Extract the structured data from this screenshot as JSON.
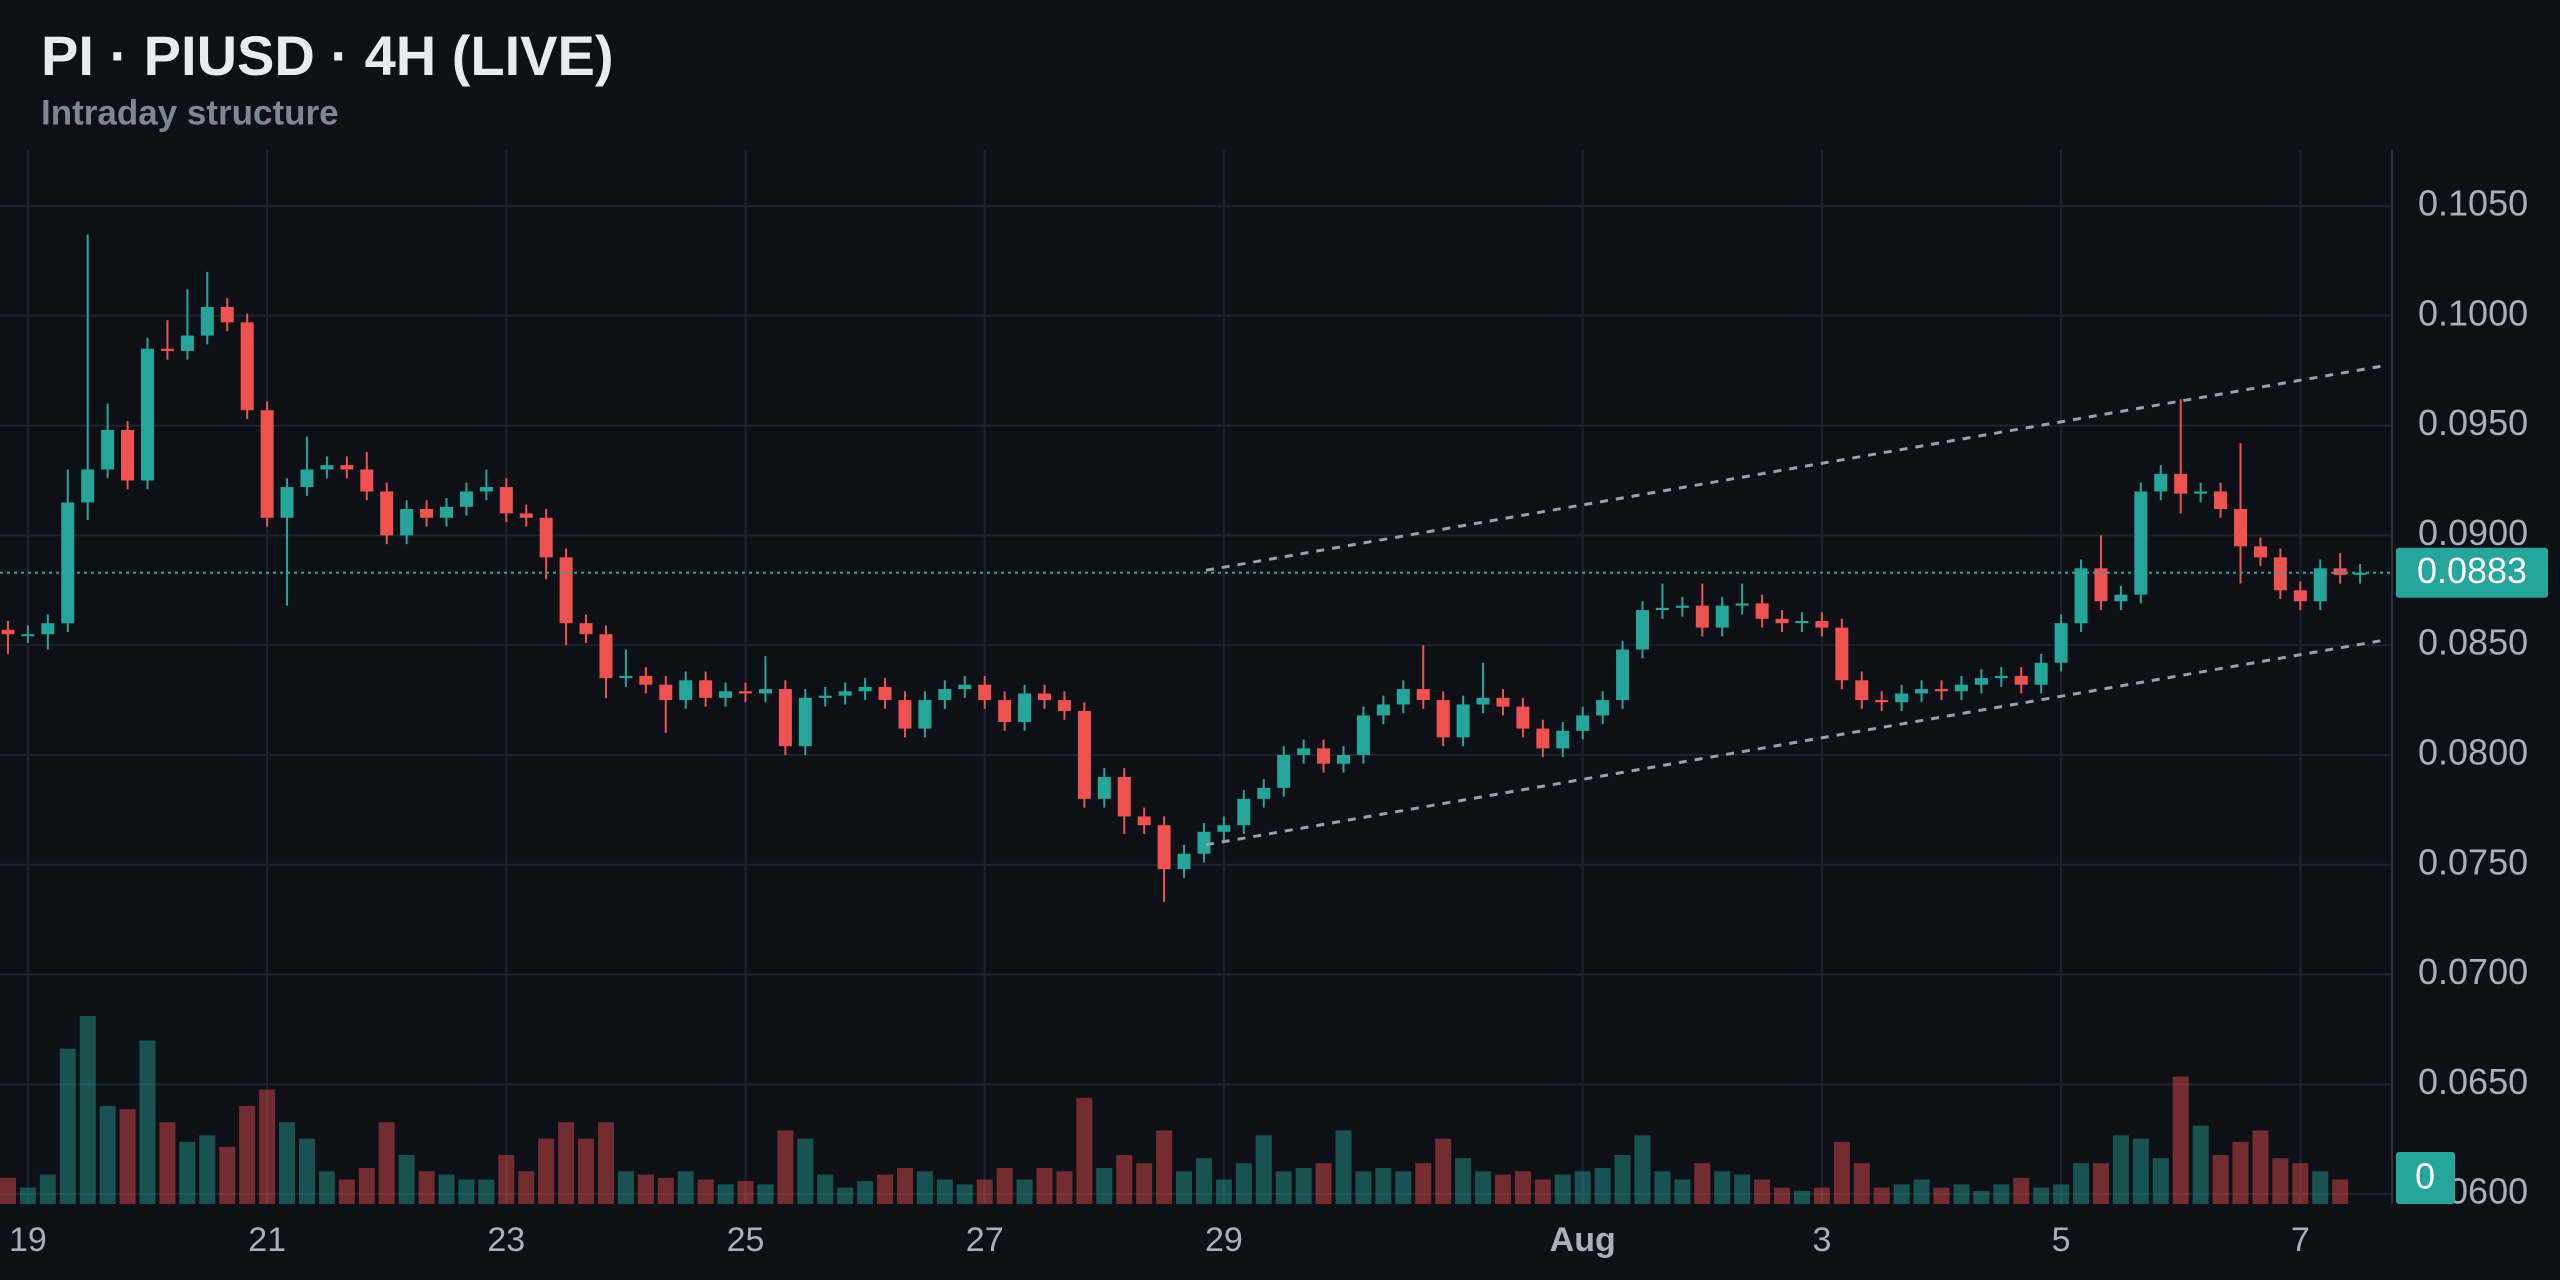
{
  "chart_data": {
    "type": "candlestick",
    "title": "PI · PIUSD · 4H (LIVE)",
    "subtitle": "Intraday structure",
    "up_color": "#26a69a",
    "down_color": "#ef5350",
    "grid": true,
    "xlim": [
      -0.4,
      119.6
    ],
    "ylim": [
      0.05955,
      0.10755
    ],
    "xticks": [
      {
        "value": 1,
        "label": "19"
      },
      {
        "value": 13,
        "label": "21"
      },
      {
        "value": 25,
        "label": "23"
      },
      {
        "value": 37,
        "label": "25"
      },
      {
        "value": 49,
        "label": "27"
      },
      {
        "value": 61,
        "label": "29"
      },
      {
        "value": 79,
        "label": "Aug"
      },
      {
        "value": 91,
        "label": "3"
      },
      {
        "value": 103,
        "label": "5"
      },
      {
        "value": 115,
        "label": "7"
      }
    ],
    "yticks": [
      {
        "value": 0.06,
        "label": "0.0600"
      },
      {
        "value": 0.065,
        "label": "0.0650"
      },
      {
        "value": 0.07,
        "label": "0.0700"
      },
      {
        "value": 0.075,
        "label": "0.0750"
      },
      {
        "value": 0.08,
        "label": "0.0800"
      },
      {
        "value": 0.085,
        "label": "0.0850"
      },
      {
        "value": 0.09,
        "label": "0.0900"
      },
      {
        "value": 0.095,
        "label": "0.0950"
      },
      {
        "value": 0.1,
        "label": "0.1000"
      },
      {
        "value": 0.105,
        "label": "0.1050"
      }
    ],
    "open": [
      0.0857,
      0.0855,
      0.0855,
      0.086,
      0.0915,
      0.093,
      0.0948,
      0.0925,
      0.0985,
      0.0984,
      0.0991,
      0.1004,
      0.0997,
      0.0957,
      0.0908,
      0.0922,
      0.093,
      0.0932,
      0.093,
      0.092,
      0.09,
      0.0912,
      0.0908,
      0.0913,
      0.092,
      0.0922,
      0.091,
      0.0908,
      0.089,
      0.086,
      0.0855,
      0.0835,
      0.0836,
      0.0832,
      0.0825,
      0.0834,
      0.0826,
      0.0829,
      0.0828,
      0.083,
      0.0804,
      0.0826,
      0.0827,
      0.0829,
      0.0831,
      0.0825,
      0.0812,
      0.0825,
      0.083,
      0.0832,
      0.0825,
      0.0815,
      0.0828,
      0.0825,
      0.082,
      0.078,
      0.079,
      0.0772,
      0.0768,
      0.0748,
      0.0755,
      0.0765,
      0.0768,
      0.078,
      0.0785,
      0.08,
      0.0803,
      0.0796,
      0.08,
      0.0818,
      0.0823,
      0.083,
      0.0825,
      0.0808,
      0.0823,
      0.0826,
      0.0822,
      0.0812,
      0.0803,
      0.0811,
      0.0818,
      0.0825,
      0.0848,
      0.0866,
      0.0867,
      0.0868,
      0.0858,
      0.0868,
      0.0869,
      0.0862,
      0.086,
      0.0861,
      0.0858,
      0.0834,
      0.0825,
      0.0824,
      0.0828,
      0.083,
      0.0829,
      0.0832,
      0.0835,
      0.0836,
      0.0832,
      0.0842,
      0.086,
      0.0885,
      0.087,
      0.0873,
      0.092,
      0.0928,
      0.0919,
      0.092,
      0.0912,
      0.0895,
      0.089,
      0.0875,
      0.087,
      0.0885,
      0.0882
    ],
    "high": [
      0.0861,
      0.0859,
      0.0864,
      0.093,
      0.1037,
      0.096,
      0.0952,
      0.099,
      0.0998,
      0.1012,
      0.102,
      0.1008,
      0.1001,
      0.0961,
      0.0926,
      0.0945,
      0.0936,
      0.0936,
      0.0938,
      0.0924,
      0.0916,
      0.0916,
      0.0917,
      0.0924,
      0.093,
      0.0926,
      0.0914,
      0.0912,
      0.0894,
      0.0864,
      0.0859,
      0.0848,
      0.084,
      0.0836,
      0.0838,
      0.0838,
      0.0833,
      0.0833,
      0.0845,
      0.0834,
      0.083,
      0.0831,
      0.0833,
      0.0835,
      0.0835,
      0.0829,
      0.0829,
      0.0834,
      0.0836,
      0.0836,
      0.0829,
      0.0832,
      0.0832,
      0.0829,
      0.0824,
      0.0794,
      0.0794,
      0.0776,
      0.0772,
      0.0759,
      0.0769,
      0.0772,
      0.0784,
      0.0789,
      0.0804,
      0.0807,
      0.0807,
      0.0804,
      0.0822,
      0.0827,
      0.0834,
      0.085,
      0.0829,
      0.0827,
      0.0842,
      0.083,
      0.0826,
      0.0816,
      0.0815,
      0.0822,
      0.0829,
      0.0852,
      0.087,
      0.0878,
      0.0872,
      0.0878,
      0.0872,
      0.0878,
      0.0873,
      0.0866,
      0.0865,
      0.0865,
      0.0862,
      0.0838,
      0.0829,
      0.0832,
      0.0834,
      0.0834,
      0.0836,
      0.0839,
      0.084,
      0.084,
      0.0846,
      0.0864,
      0.0889,
      0.09,
      0.0877,
      0.0924,
      0.0932,
      0.0962,
      0.0924,
      0.0924,
      0.0942,
      0.0899,
      0.0894,
      0.0879,
      0.0889,
      0.0892,
      0.0887
    ],
    "low": [
      0.0846,
      0.0851,
      0.0848,
      0.0856,
      0.0907,
      0.0926,
      0.0921,
      0.0921,
      0.098,
      0.098,
      0.0987,
      0.0993,
      0.0953,
      0.0904,
      0.0868,
      0.0918,
      0.0926,
      0.0926,
      0.0916,
      0.0896,
      0.0896,
      0.0904,
      0.0904,
      0.0909,
      0.0916,
      0.0906,
      0.0904,
      0.088,
      0.085,
      0.0851,
      0.0826,
      0.0831,
      0.0828,
      0.081,
      0.0821,
      0.0822,
      0.0822,
      0.0824,
      0.0824,
      0.08,
      0.08,
      0.0822,
      0.0823,
      0.0825,
      0.0821,
      0.0808,
      0.0808,
      0.0821,
      0.0826,
      0.0821,
      0.0811,
      0.0811,
      0.0821,
      0.0816,
      0.0776,
      0.0776,
      0.0764,
      0.0764,
      0.0733,
      0.0744,
      0.0751,
      0.0761,
      0.0764,
      0.0776,
      0.0781,
      0.0796,
      0.0792,
      0.0792,
      0.0796,
      0.0814,
      0.0819,
      0.0821,
      0.0804,
      0.0804,
      0.0819,
      0.0818,
      0.0808,
      0.0799,
      0.0799,
      0.0807,
      0.0814,
      0.0821,
      0.0844,
      0.0862,
      0.0863,
      0.0854,
      0.0854,
      0.0864,
      0.0858,
      0.0856,
      0.0856,
      0.0854,
      0.083,
      0.0821,
      0.082,
      0.082,
      0.0824,
      0.0825,
      0.0825,
      0.0828,
      0.0831,
      0.0828,
      0.0828,
      0.0838,
      0.0856,
      0.0866,
      0.0866,
      0.0869,
      0.0916,
      0.091,
      0.0915,
      0.0908,
      0.0878,
      0.0886,
      0.0871,
      0.0866,
      0.0866,
      0.0878,
      0.0878
    ],
    "close": [
      0.0855,
      0.0855,
      0.086,
      0.0915,
      0.093,
      0.0948,
      0.0925,
      0.0985,
      0.0984,
      0.0991,
      0.1004,
      0.0997,
      0.0957,
      0.0908,
      0.0922,
      0.093,
      0.0932,
      0.093,
      0.092,
      0.09,
      0.0912,
      0.0908,
      0.0913,
      0.092,
      0.0922,
      0.091,
      0.0908,
      0.089,
      0.086,
      0.0855,
      0.0835,
      0.0836,
      0.0832,
      0.0825,
      0.0834,
      0.0826,
      0.0829,
      0.0828,
      0.083,
      0.0804,
      0.0826,
      0.0827,
      0.0829,
      0.0831,
      0.0825,
      0.0812,
      0.0825,
      0.083,
      0.0832,
      0.0825,
      0.0815,
      0.0828,
      0.0825,
      0.082,
      0.078,
      0.079,
      0.0772,
      0.0768,
      0.0748,
      0.0755,
      0.0765,
      0.0768,
      0.078,
      0.0785,
      0.08,
      0.0803,
      0.0796,
      0.08,
      0.0818,
      0.0823,
      0.083,
      0.0825,
      0.0808,
      0.0823,
      0.0826,
      0.0822,
      0.0812,
      0.0803,
      0.0811,
      0.0818,
      0.0825,
      0.0848,
      0.0866,
      0.0867,
      0.0868,
      0.0858,
      0.0868,
      0.0869,
      0.0862,
      0.086,
      0.0861,
      0.0858,
      0.0834,
      0.0825,
      0.0824,
      0.0828,
      0.083,
      0.0829,
      0.0832,
      0.0835,
      0.0836,
      0.0832,
      0.0842,
      0.086,
      0.0885,
      0.087,
      0.0873,
      0.092,
      0.0928,
      0.0919,
      0.092,
      0.0912,
      0.0895,
      0.089,
      0.0875,
      0.087,
      0.0885,
      0.0882,
      0.0883
    ],
    "volume": [
      16,
      10,
      18,
      95,
      115,
      60,
      58,
      100,
      50,
      38,
      42,
      35,
      60,
      70,
      50,
      40,
      20,
      15,
      22,
      50,
      30,
      20,
      18,
      15,
      15,
      30,
      20,
      40,
      50,
      40,
      50,
      20,
      18,
      16,
      20,
      15,
      12,
      14,
      12,
      45,
      40,
      18,
      10,
      14,
      18,
      22,
      20,
      15,
      12,
      15,
      22,
      15,
      22,
      20,
      65,
      22,
      30,
      25,
      45,
      20,
      28,
      15,
      25,
      42,
      20,
      22,
      25,
      45,
      20,
      22,
      20,
      25,
      40,
      28,
      20,
      18,
      20,
      15,
      18,
      20,
      22,
      30,
      42,
      20,
      15,
      25,
      20,
      18,
      15,
      10,
      8,
      10,
      38,
      25,
      10,
      12,
      15,
      10,
      12,
      8,
      12,
      16,
      10,
      12,
      25,
      25,
      42,
      40,
      28,
      78,
      48,
      30,
      38,
      45,
      28,
      25,
      20,
      15,
      0
    ],
    "trendlines": [
      {
        "x": [
          60.1,
          119.1
        ],
        "y": [
          0.08841,
          0.09771
        ]
      },
      {
        "x": [
          60.1,
          119.1
        ],
        "y": [
          0.07591,
          0.08521
        ]
      }
    ]
  }
}
